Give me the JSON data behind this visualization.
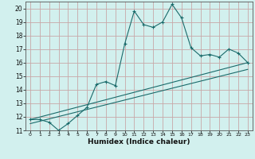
{
  "xlabel": "Humidex (Indice chaleur)",
  "bg_color": "#d2f0ee",
  "grid_color": "#c8a8a8",
  "line_color": "#1a6b6b",
  "xlim": [
    -0.5,
    23.5
  ],
  "ylim": [
    11,
    20.5
  ],
  "xticks": [
    0,
    1,
    2,
    3,
    4,
    5,
    6,
    7,
    8,
    9,
    10,
    11,
    12,
    13,
    14,
    15,
    16,
    17,
    18,
    19,
    20,
    21,
    22,
    23
  ],
  "yticks": [
    11,
    12,
    13,
    14,
    15,
    16,
    17,
    18,
    19,
    20
  ],
  "series1_x": [
    0,
    1,
    2,
    3,
    4,
    5,
    6,
    7,
    8,
    9,
    10,
    11,
    12,
    13,
    14,
    15,
    16,
    17,
    18,
    19,
    20,
    21,
    22,
    23
  ],
  "series1_y": [
    11.8,
    11.8,
    11.6,
    11.0,
    11.5,
    12.1,
    12.7,
    14.4,
    14.6,
    14.3,
    17.4,
    19.8,
    18.8,
    18.6,
    19.0,
    20.3,
    19.3,
    17.1,
    16.5,
    16.6,
    16.4,
    17.0,
    16.7,
    16.0
  ],
  "series2_x": [
    0,
    23
  ],
  "series2_y": [
    11.8,
    16.0
  ],
  "series3_x": [
    0,
    23
  ],
  "series3_y": [
    11.5,
    15.5
  ]
}
